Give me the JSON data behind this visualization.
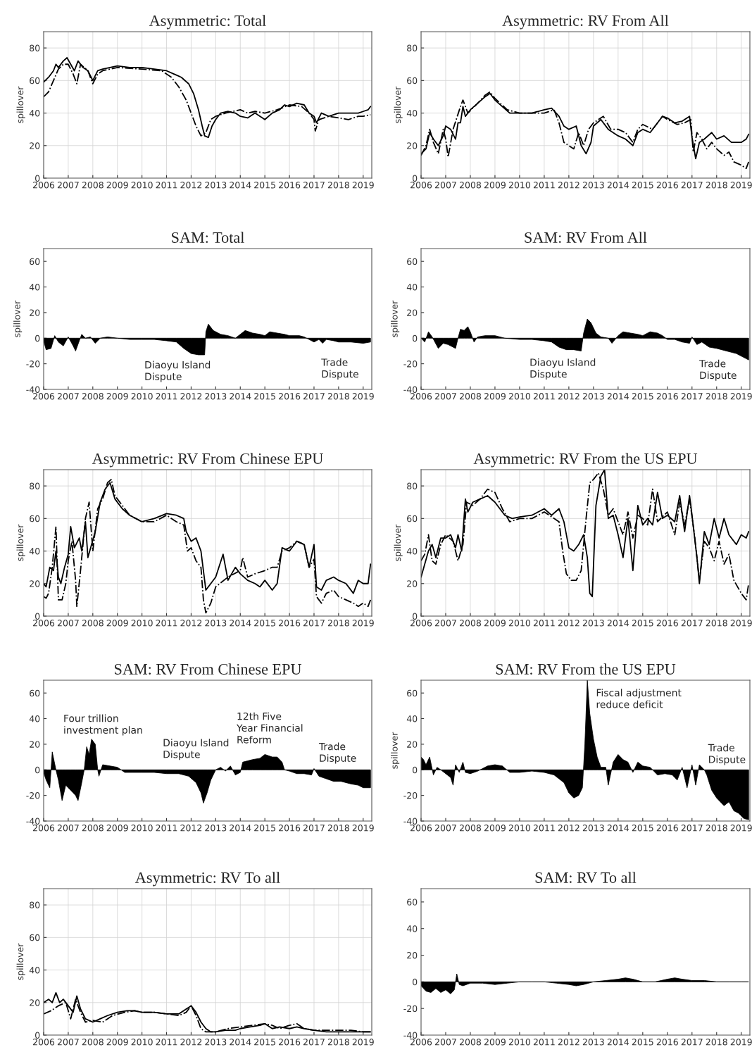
{
  "chart_data": [
    {
      "type": "line",
      "title": "Asymmetric: Total",
      "ylabel": "spillover",
      "xlim": [
        2006,
        2019.35
      ],
      "xticks": [
        2006,
        2007,
        2008,
        2009,
        2010,
        2011,
        2012,
        2013,
        2014,
        2015,
        2016,
        2017,
        2018,
        2019
      ],
      "ylim": [
        0,
        90
      ],
      "yticks": [
        0,
        20,
        40,
        60,
        80
      ],
      "grid": true,
      "series": [
        {
          "color": "#000000",
          "line_style": "solid",
          "x": [
            2006,
            2006.2,
            2006.4,
            2006.5,
            2006.6,
            2006.8,
            2006.95,
            2007.1,
            2007.25,
            2007.4,
            2007.6,
            2007.8,
            2008.0,
            2008.2,
            2008.4,
            2008.7,
            2009,
            2009.5,
            2010,
            2010.5,
            2011,
            2011.3,
            2011.6,
            2011.9,
            2012.1,
            2012.3,
            2012.45,
            2012.55,
            2012.7,
            2012.85,
            2013,
            2013.2,
            2013.5,
            2013.8,
            2014,
            2014.3,
            2014.6,
            2015,
            2015.3,
            2015.6,
            2015.8,
            2016,
            2016.3,
            2016.6,
            2016.8,
            2017,
            2017.1,
            2017.3,
            2017.6,
            2018,
            2018.4,
            2018.8,
            2019,
            2019.2,
            2019.3
          ],
          "values": [
            59,
            62,
            66,
            70,
            68,
            72,
            74,
            70,
            66,
            72,
            68,
            66,
            60,
            66,
            67,
            68,
            69,
            68,
            68,
            67,
            66,
            64,
            62,
            58,
            52,
            42,
            32,
            26,
            25,
            32,
            36,
            40,
            41,
            40,
            38,
            37,
            40,
            36,
            40,
            42,
            45,
            44,
            46,
            45,
            40,
            38,
            34,
            40,
            38,
            40,
            40,
            40,
            41,
            42,
            44
          ]
        },
        {
          "color": "#000000",
          "line_style": "dashdot",
          "x": [
            2006,
            2006.2,
            2006.4,
            2006.6,
            2006.8,
            2007,
            2007.2,
            2007.35,
            2007.5,
            2007.8,
            2008,
            2008.2,
            2008.4,
            2009,
            2010,
            2010.8,
            2011.2,
            2011.5,
            2011.8,
            2012,
            2012.2,
            2012.4,
            2012.6,
            2012.8,
            2013,
            2013.4,
            2014,
            2014.3,
            2014.6,
            2015,
            2015.5,
            2016,
            2016.5,
            2016.8,
            2017,
            2017.05,
            2017.2,
            2017.6,
            2018,
            2018.4,
            2018.8,
            2019,
            2019.3
          ],
          "values": [
            50,
            53,
            60,
            67,
            70,
            70,
            64,
            58,
            70,
            66,
            58,
            64,
            66,
            68,
            67,
            66,
            62,
            56,
            48,
            40,
            32,
            26,
            28,
            36,
            38,
            40,
            42,
            40,
            41,
            40,
            42,
            45,
            44,
            40,
            36,
            29,
            36,
            38,
            37,
            36,
            38,
            38,
            39
          ]
        }
      ]
    },
    {
      "type": "line",
      "title": "Asymmetric: RV From All",
      "ylabel": "spillover",
      "xlim": [
        2006,
        2019.35
      ],
      "xticks": [
        2006,
        2007,
        2008,
        2009,
        2010,
        2011,
        2012,
        2013,
        2014,
        2015,
        2016,
        2017,
        2018,
        2019
      ],
      "ylim": [
        0,
        90
      ],
      "yticks": [
        0,
        20,
        40,
        60,
        80
      ],
      "grid": true,
      "series": [
        {
          "color": "#000000",
          "line_style": "solid",
          "x": [
            2006,
            2006.2,
            2006.35,
            2006.5,
            2006.7,
            2006.9,
            2007,
            2007.2,
            2007.4,
            2007.5,
            2007.6,
            2007.7,
            2007.8,
            2008,
            2008.3,
            2008.6,
            2008.8,
            2009,
            2009.3,
            2009.6,
            2010,
            2010.5,
            2011,
            2011.3,
            2011.6,
            2011.8,
            2012,
            2012.3,
            2012.5,
            2012.7,
            2012.9,
            2013,
            2013.3,
            2013.6,
            2014,
            2014.3,
            2014.6,
            2014.8,
            2015,
            2015.3,
            2015.6,
            2015.8,
            2016,
            2016.3,
            2016.6,
            2016.9,
            2017,
            2017.15,
            2017.3,
            2017.5,
            2017.8,
            2018,
            2018.3,
            2018.6,
            2019,
            2019.2,
            2019.3
          ],
          "values": [
            15,
            18,
            28,
            24,
            20,
            26,
            32,
            30,
            24,
            34,
            34,
            44,
            38,
            42,
            46,
            50,
            52,
            48,
            44,
            40,
            40,
            40,
            42,
            43,
            38,
            32,
            30,
            32,
            20,
            15,
            22,
            32,
            36,
            30,
            26,
            24,
            20,
            28,
            30,
            28,
            34,
            38,
            37,
            34,
            35,
            38,
            25,
            12,
            22,
            24,
            28,
            24,
            26,
            22,
            22,
            24,
            27
          ]
        },
        {
          "color": "#000000",
          "line_style": "dashdot",
          "x": [
            2006,
            2006.2,
            2006.35,
            2006.5,
            2006.7,
            2006.9,
            2007,
            2007.1,
            2007.3,
            2007.6,
            2007.7,
            2007.9,
            2008.3,
            2008.6,
            2008.8,
            2009,
            2009.5,
            2010,
            2010.5,
            2011,
            2011.4,
            2011.6,
            2011.8,
            2012,
            2012.2,
            2012.4,
            2012.6,
            2012.8,
            2013,
            2013.4,
            2013.7,
            2014,
            2014.3,
            2014.6,
            2014.8,
            2015,
            2015.4,
            2015.6,
            2015.8,
            2016,
            2016.4,
            2016.7,
            2016.95,
            2017.05,
            2017.2,
            2017.4,
            2017.6,
            2017.8,
            2018,
            2018.3,
            2018.5,
            2018.7,
            2019,
            2019.2,
            2019.3
          ],
          "values": [
            14,
            20,
            30,
            22,
            15,
            30,
            24,
            13,
            30,
            44,
            48,
            40,
            46,
            51,
            53,
            49,
            42,
            40,
            40,
            40,
            42,
            34,
            22,
            20,
            18,
            28,
            20,
            30,
            34,
            38,
            30,
            30,
            28,
            22,
            30,
            33,
            30,
            34,
            38,
            36,
            33,
            34,
            36,
            16,
            28,
            24,
            18,
            22,
            18,
            14,
            16,
            10,
            8,
            6,
            10
          ]
        }
      ]
    },
    {
      "type": "area",
      "title": "SAM: Total",
      "ylabel": "spillover",
      "xlim": [
        2006,
        2019.35
      ],
      "xticks": [
        2006,
        2007,
        2008,
        2009,
        2010,
        2011,
        2012,
        2013,
        2014,
        2015,
        2016,
        2017,
        2018,
        2019
      ],
      "ylim": [
        -40,
        70
      ],
      "yticks": [
        -40,
        -20,
        0,
        20,
        40,
        60
      ],
      "grid": false,
      "annotations": [
        "Diaoyu Island\nDispute",
        "Trade\nDispute"
      ],
      "series": [
        {
          "color": "#000000",
          "x": [
            2006,
            2006.1,
            2006.3,
            2006.45,
            2006.6,
            2006.8,
            2007,
            2007.2,
            2007.3,
            2007.45,
            2007.55,
            2007.7,
            2007.9,
            2008.1,
            2008.3,
            2008.6,
            2009,
            2009.5,
            2010,
            2010.5,
            2011,
            2011.4,
            2011.7,
            2012,
            2012.3,
            2012.55,
            2012.6,
            2012.7,
            2012.9,
            2013.2,
            2013.5,
            2013.8,
            2014,
            2014.2,
            2014.5,
            2014.8,
            2015,
            2015.2,
            2015.5,
            2015.8,
            2016,
            2016.4,
            2016.6,
            2016.8,
            2017,
            2017.2,
            2017.35,
            2017.5,
            2017.8,
            2018,
            2018.5,
            2019,
            2019.3
          ],
          "values": [
            -2,
            -9,
            -8,
            2,
            -3,
            -6,
            1,
            -6,
            -10,
            -2,
            3,
            0,
            1,
            -4,
            0,
            1,
            0,
            -1,
            -1,
            -1,
            -2,
            -3,
            -8,
            -12,
            -13,
            -13,
            5,
            11,
            6,
            3,
            2,
            0,
            3,
            6,
            4,
            3,
            2,
            5,
            4,
            3,
            2,
            2,
            1,
            -1,
            -3,
            -1,
            -4,
            -1,
            -2,
            -3,
            -3,
            -4,
            -3
          ]
        }
      ]
    },
    {
      "type": "area",
      "title": "SAM: RV From All",
      "ylabel": "spillover",
      "xlim": [
        2006,
        2019.35
      ],
      "xticks": [
        2006,
        2007,
        2008,
        2009,
        2010,
        2011,
        2012,
        2013,
        2014,
        2015,
        2016,
        2017,
        2018,
        2019
      ],
      "ylim": [
        -40,
        70
      ],
      "yticks": [
        -40,
        -20,
        0,
        20,
        40,
        60
      ],
      "grid": false,
      "annotations": [
        "Diaoyu Island\nDispute",
        "Trade\nDispute"
      ],
      "series": [
        {
          "color": "#000000",
          "x": [
            2006,
            2006.15,
            2006.3,
            2006.45,
            2006.7,
            2006.9,
            2007.1,
            2007.4,
            2007.5,
            2007.6,
            2007.75,
            2007.9,
            2008,
            2008.15,
            2008.3,
            2008.6,
            2009,
            2009.4,
            2010,
            2010.5,
            2011,
            2011.3,
            2011.6,
            2011.9,
            2012.2,
            2012.5,
            2012.6,
            2012.75,
            2012.9,
            2013.1,
            2013.3,
            2013.6,
            2013.75,
            2014,
            2014.2,
            2014.5,
            2014.8,
            2015,
            2015.3,
            2015.6,
            2015.8,
            2016,
            2016.3,
            2016.6,
            2016.9,
            2017,
            2017.2,
            2017.4,
            2017.7,
            2018,
            2018.4,
            2018.8,
            2019,
            2019.2,
            2019.3
          ],
          "values": [
            0,
            -3,
            5,
            1,
            -8,
            -4,
            -5,
            -8,
            0,
            7,
            6,
            9,
            5,
            -3,
            1,
            2,
            2,
            0,
            -1,
            -1,
            -2,
            -3,
            -7,
            -9,
            -9,
            -10,
            4,
            15,
            12,
            4,
            1,
            0,
            -4,
            2,
            5,
            4,
            3,
            2,
            5,
            4,
            2,
            -1,
            -1,
            -3,
            -4,
            1,
            -5,
            -3,
            -7,
            -8,
            -10,
            -12,
            -14,
            -16,
            -17
          ]
        }
      ]
    },
    {
      "type": "line",
      "title": "Asymmetric: RV From Chinese EPU",
      "ylabel": "spillover",
      "xlim": [
        2006,
        2019.35
      ],
      "xticks": [
        2006,
        2007,
        2008,
        2009,
        2010,
        2011,
        2012,
        2013,
        2014,
        2015,
        2016,
        2017,
        2018,
        2019
      ],
      "ylim": [
        0,
        90
      ],
      "yticks": [
        0,
        20,
        40,
        60,
        80
      ],
      "grid": true,
      "series": [
        {
          "color": "#000000",
          "line_style": "solid",
          "x": [
            2006,
            2006.1,
            2006.25,
            2006.4,
            2006.5,
            2006.6,
            2006.7,
            2006.85,
            2007,
            2007.1,
            2007.25,
            2007.45,
            2007.55,
            2007.7,
            2007.8,
            2007.95,
            2008.1,
            2008.3,
            2008.5,
            2008.7,
            2008.9,
            2009.2,
            2009.5,
            2010,
            2010.5,
            2011,
            2011.4,
            2011.7,
            2011.8,
            2012,
            2012.2,
            2012.4,
            2012.5,
            2012.6,
            2012.8,
            2013,
            2013.3,
            2013.5,
            2013.8,
            2014,
            2014.3,
            2014.6,
            2014.8,
            2015,
            2015.3,
            2015.5,
            2015.7,
            2016,
            2016.3,
            2016.6,
            2016.8,
            2017,
            2017.1,
            2017.3,
            2017.5,
            2017.8,
            2018,
            2018.3,
            2018.6,
            2018.8,
            2019,
            2019.2,
            2019.3
          ],
          "values": [
            20,
            18,
            30,
            28,
            40,
            24,
            20,
            30,
            38,
            55,
            42,
            48,
            40,
            58,
            36,
            44,
            52,
            70,
            78,
            82,
            72,
            66,
            62,
            58,
            60,
            63,
            62,
            60,
            52,
            46,
            48,
            40,
            28,
            16,
            20,
            24,
            38,
            22,
            30,
            26,
            22,
            20,
            18,
            22,
            16,
            20,
            42,
            40,
            46,
            44,
            30,
            44,
            18,
            16,
            22,
            24,
            22,
            20,
            14,
            22,
            20,
            20,
            32
          ]
        },
        {
          "color": "#000000",
          "line_style": "dashdot",
          "x": [
            2006,
            2006.1,
            2006.2,
            2006.35,
            2006.5,
            2006.6,
            2006.75,
            2006.9,
            2007,
            2007.15,
            2007.3,
            2007.35,
            2007.5,
            2007.7,
            2007.85,
            2008,
            2008.2,
            2008.4,
            2008.6,
            2008.75,
            2008.9,
            2009.2,
            2009.5,
            2010,
            2010.5,
            2011,
            2011.4,
            2011.7,
            2011.85,
            2012,
            2012.2,
            2012.4,
            2012.5,
            2012.6,
            2012.8,
            2013,
            2013.5,
            2014,
            2014.1,
            2014.3,
            2014.6,
            2015,
            2015.3,
            2015.5,
            2015.7,
            2016,
            2016.3,
            2016.6,
            2016.8,
            2017,
            2017.1,
            2017.3,
            2017.5,
            2017.8,
            2018,
            2018.3,
            2018.6,
            2018.8,
            2019,
            2019.2,
            2019.3
          ],
          "values": [
            12,
            11,
            14,
            30,
            55,
            10,
            10,
            20,
            34,
            46,
            22,
            6,
            28,
            60,
            70,
            40,
            66,
            72,
            82,
            84,
            74,
            68,
            62,
            58,
            58,
            62,
            58,
            56,
            40,
            42,
            34,
            30,
            10,
            2,
            8,
            18,
            24,
            28,
            36,
            24,
            26,
            28,
            30,
            30,
            40,
            42,
            46,
            44,
            30,
            35,
            12,
            8,
            14,
            16,
            12,
            10,
            8,
            6,
            8,
            6,
            10
          ]
        }
      ]
    },
    {
      "type": "line",
      "title": "Asymmetric: RV From the US EPU",
      "ylabel": "spillover",
      "xlim": [
        2006,
        2019.35
      ],
      "xticks": [
        2006,
        2007,
        2008,
        2009,
        2010,
        2011,
        2012,
        2013,
        2014,
        2015,
        2016,
        2017,
        2018,
        2019
      ],
      "ylim": [
        0,
        90
      ],
      "yticks": [
        0,
        20,
        40,
        60,
        80
      ],
      "grid": true,
      "series": [
        {
          "color": "#000000",
          "line_style": "solid",
          "x": [
            2006,
            2006.15,
            2006.3,
            2006.45,
            2006.6,
            2006.8,
            2007,
            2007.2,
            2007.4,
            2007.5,
            2007.65,
            2007.8,
            2007.9,
            2008.1,
            2008.4,
            2008.7,
            2009,
            2009.4,
            2009.7,
            2010,
            2010.5,
            2011,
            2011.3,
            2011.6,
            2011.8,
            2012,
            2012.2,
            2012.4,
            2012.6,
            2012.75,
            2012.85,
            2012.95,
            2013.1,
            2013.3,
            2013.45,
            2013.6,
            2013.8,
            2014,
            2014.2,
            2014.4,
            2014.6,
            2014.8,
            2015,
            2015.2,
            2015.4,
            2015.6,
            2015.8,
            2016,
            2016.3,
            2016.5,
            2016.7,
            2016.9,
            2017,
            2017.2,
            2017.3,
            2017.5,
            2017.7,
            2017.9,
            2018.1,
            2018.3,
            2018.5,
            2018.8,
            2019,
            2019.2,
            2019.3
          ],
          "values": [
            24,
            32,
            40,
            44,
            36,
            48,
            48,
            50,
            42,
            50,
            40,
            72,
            64,
            70,
            72,
            74,
            70,
            62,
            60,
            61,
            62,
            66,
            62,
            66,
            58,
            42,
            40,
            44,
            50,
            36,
            14,
            12,
            68,
            86,
            90,
            60,
            62,
            50,
            36,
            60,
            28,
            68,
            56,
            60,
            56,
            76,
            60,
            62,
            58,
            74,
            52,
            74,
            62,
            36,
            20,
            52,
            44,
            60,
            48,
            60,
            50,
            44,
            50,
            48,
            52
          ]
        },
        {
          "color": "#000000",
          "line_style": "dashdot",
          "x": [
            2006,
            2006.15,
            2006.3,
            2006.45,
            2006.6,
            2006.8,
            2007,
            2007.3,
            2007.5,
            2007.7,
            2007.85,
            2008.1,
            2008.4,
            2008.7,
            2009,
            2009.3,
            2009.6,
            2010,
            2010.5,
            2011,
            2011.4,
            2011.6,
            2011.75,
            2011.9,
            2012.1,
            2012.3,
            2012.5,
            2012.7,
            2012.85,
            2013,
            2013.2,
            2013.4,
            2013.6,
            2013.8,
            2014,
            2014.2,
            2014.4,
            2014.6,
            2014.8,
            2015,
            2015.2,
            2015.4,
            2015.6,
            2016,
            2016.3,
            2016.5,
            2016.7,
            2016.9,
            2017.1,
            2017.3,
            2017.5,
            2017.7,
            2017.9,
            2018.1,
            2018.3,
            2018.5,
            2018.7,
            2019,
            2019.2,
            2019.3
          ],
          "values": [
            34,
            38,
            50,
            34,
            32,
            44,
            50,
            46,
            34,
            44,
            70,
            68,
            72,
            78,
            76,
            66,
            58,
            60,
            60,
            64,
            60,
            58,
            40,
            26,
            22,
            22,
            28,
            60,
            82,
            84,
            88,
            78,
            62,
            66,
            58,
            50,
            64,
            48,
            62,
            60,
            56,
            78,
            58,
            64,
            50,
            70,
            56,
            72,
            50,
            22,
            46,
            42,
            34,
            46,
            32,
            38,
            22,
            14,
            10,
            20
          ]
        }
      ]
    },
    {
      "type": "area",
      "title": "SAM: RV From Chinese EPU",
      "xlim": [
        2006,
        2019.35
      ],
      "xticks": [
        2006,
        2007,
        2008,
        2009,
        2010,
        2011,
        2012,
        2013,
        2014,
        2015,
        2016,
        2017,
        2018,
        2019
      ],
      "ylim": [
        -40,
        70
      ],
      "yticks": [
        -40,
        -20,
        0,
        20,
        40,
        60
      ],
      "grid": false,
      "annotations": [
        "Four trillion\ninvestment plan",
        "Diaoyu Island\nDispute",
        "12th Five\nYear Financial\nReform",
        "Trade\nDispute"
      ],
      "series": [
        {
          "color": "#000000",
          "x": [
            2006,
            2006.1,
            2006.25,
            2006.35,
            2006.5,
            2006.6,
            2006.75,
            2006.9,
            2007.1,
            2007.3,
            2007.4,
            2007.55,
            2007.65,
            2007.75,
            2007.85,
            2007.95,
            2008.1,
            2008.2,
            2008.25,
            2008.4,
            2008.7,
            2009,
            2009.3,
            2009.6,
            2010,
            2010.5,
            2011,
            2011.5,
            2011.9,
            2012.2,
            2012.4,
            2012.5,
            2012.65,
            2012.8,
            2013,
            2013.2,
            2013.4,
            2013.6,
            2013.8,
            2014,
            2014.1,
            2014.3,
            2014.5,
            2014.8,
            2015,
            2015.3,
            2015.5,
            2015.7,
            2015.8,
            2016,
            2016.3,
            2016.6,
            2016.9,
            2017,
            2017.2,
            2017.5,
            2017.8,
            2018.1,
            2018.5,
            2018.8,
            2019,
            2019.3
          ],
          "values": [
            -2,
            -8,
            -14,
            14,
            0,
            -8,
            -24,
            -12,
            -16,
            -20,
            -24,
            -10,
            0,
            18,
            12,
            24,
            20,
            0,
            -5,
            4,
            3,
            2,
            -2,
            -2,
            -2,
            -2,
            -3,
            -3,
            -5,
            -10,
            -18,
            -26,
            -18,
            -8,
            0,
            2,
            -1,
            3,
            -4,
            -2,
            6,
            7,
            8,
            9,
            12,
            10,
            10,
            6,
            0,
            -1,
            -3,
            -3,
            -4,
            1,
            -5,
            -7,
            -9,
            -9,
            -11,
            -12,
            -14,
            -14
          ]
        }
      ]
    },
    {
      "type": "area",
      "title": "SAM: RV From the US EPU",
      "ylabel": "spillover",
      "xlim": [
        2006,
        2019.35
      ],
      "xticks": [
        2006,
        2007,
        2008,
        2009,
        2010,
        2011,
        2012,
        2013,
        2014,
        2015,
        2016,
        2017,
        2018,
        2019
      ],
      "ylim": [
        -40,
        70
      ],
      "yticks": [
        -40,
        -20,
        0,
        20,
        40,
        60
      ],
      "grid": false,
      "annotations": [
        "Fiscal adjustment\nreduce deficit",
        "Trade\nDispute"
      ],
      "series": [
        {
          "color": "#000000",
          "x": [
            2006,
            2006.1,
            2006.2,
            2006.35,
            2006.5,
            2006.65,
            2006.8,
            2007,
            2007.2,
            2007.3,
            2007.4,
            2007.55,
            2007.7,
            2007.8,
            2008,
            2008.3,
            2008.7,
            2009,
            2009.3,
            2009.6,
            2010,
            2010.5,
            2011,
            2011.4,
            2011.8,
            2012,
            2012.2,
            2012.4,
            2012.55,
            2012.65,
            2012.75,
            2012.85,
            2013,
            2013.15,
            2013.3,
            2013.5,
            2013.6,
            2013.8,
            2014,
            2014.2,
            2014.4,
            2014.6,
            2014.8,
            2015,
            2015.3,
            2015.6,
            2015.9,
            2016.2,
            2016.4,
            2016.6,
            2016.8,
            2017,
            2017.15,
            2017.3,
            2017.5,
            2017.6,
            2017.8,
            2018,
            2018.3,
            2018.5,
            2018.7,
            2018.9,
            2019.1,
            2019.3
          ],
          "values": [
            10,
            8,
            4,
            10,
            -4,
            2,
            0,
            -3,
            -6,
            -12,
            4,
            -2,
            6,
            -2,
            -3,
            -1,
            3,
            4,
            3,
            -2,
            -2,
            -1,
            -2,
            -4,
            -10,
            -18,
            -22,
            -20,
            -14,
            20,
            70,
            44,
            24,
            10,
            2,
            2,
            -12,
            6,
            12,
            8,
            6,
            -2,
            6,
            3,
            2,
            -4,
            -3,
            -4,
            -8,
            2,
            -14,
            4,
            -12,
            4,
            0,
            -4,
            -16,
            -22,
            -28,
            -25,
            -32,
            -34,
            -38,
            -39
          ]
        }
      ]
    },
    {
      "type": "line",
      "title": "Asymmetric: RV To all",
      "ylabel": "spillover",
      "xlim": [
        2006,
        2019.35
      ],
      "xticks": [
        2006,
        2007,
        2008,
        2009,
        2010,
        2011,
        2012,
        2013,
        2014,
        2015,
        2016,
        2017,
        2018,
        2019
      ],
      "ylim": [
        0,
        90
      ],
      "yticks": [
        0,
        20,
        40,
        60,
        80
      ],
      "grid": true,
      "series": [
        {
          "color": "#000000",
          "line_style": "solid",
          "x": [
            2006,
            2006.2,
            2006.35,
            2006.5,
            2006.65,
            2006.8,
            2007,
            2007.2,
            2007.35,
            2007.5,
            2007.7,
            2008,
            2008.3,
            2008.6,
            2009,
            2009.4,
            2009.7,
            2010,
            2010.5,
            2011,
            2011.5,
            2011.8,
            2012,
            2012.2,
            2012.4,
            2012.6,
            2012.8,
            2013,
            2013.4,
            2013.8,
            2014,
            2014.4,
            2014.8,
            2015,
            2015.3,
            2015.6,
            2016,
            2016.3,
            2016.6,
            2017,
            2017.5,
            2018,
            2018.5,
            2019,
            2019.3
          ],
          "values": [
            20,
            22,
            20,
            26,
            20,
            22,
            18,
            14,
            24,
            16,
            10,
            8,
            10,
            12,
            14,
            15,
            15,
            14,
            14,
            13,
            13,
            16,
            18,
            14,
            8,
            4,
            2,
            2,
            3,
            3,
            4,
            5,
            6,
            7,
            4,
            5,
            4,
            5,
            4,
            3,
            2,
            2,
            2,
            2,
            2
          ]
        },
        {
          "color": "#000000",
          "line_style": "dashdot",
          "x": [
            2006,
            2006.3,
            2006.6,
            2006.9,
            2007.1,
            2007.3,
            2007.5,
            2007.7,
            2008,
            2008.4,
            2008.8,
            2009.3,
            2009.7,
            2010,
            2010.5,
            2011,
            2011.5,
            2011.8,
            2012,
            2012.2,
            2012.4,
            2012.6,
            2013,
            2013.5,
            2014,
            2014.5,
            2015,
            2015.3,
            2015.6,
            2016,
            2016.3,
            2016.6,
            2017,
            2017.5,
            2018,
            2018.5,
            2019,
            2019.3
          ],
          "values": [
            13,
            15,
            18,
            20,
            10,
            22,
            14,
            8,
            9,
            8,
            12,
            14,
            15,
            14,
            14,
            13,
            12,
            14,
            18,
            12,
            4,
            2,
            2,
            4,
            5,
            6,
            7,
            6,
            4,
            6,
            7,
            4,
            3,
            3,
            3,
            3,
            2,
            2
          ]
        }
      ]
    },
    {
      "type": "area",
      "title": "SAM: RV To all",
      "xlim": [
        2006,
        2019.35
      ],
      "xticks": [
        2006,
        2007,
        2008,
        2009,
        2010,
        2011,
        2012,
        2013,
        2014,
        2015,
        2016,
        2017,
        2018,
        2019
      ],
      "ylim": [
        -40,
        70
      ],
      "yticks": [
        -40,
        -20,
        0,
        20,
        40,
        60
      ],
      "grid": false,
      "series": [
        {
          "color": "#000000",
          "x": [
            2006,
            2006.2,
            2006.4,
            2006.6,
            2006.8,
            2007,
            2007.2,
            2007.35,
            2007.45,
            2007.55,
            2007.7,
            2008,
            2008.5,
            2009,
            2009.5,
            2010,
            2010.5,
            2011,
            2011.5,
            2012,
            2012.3,
            2012.6,
            2013,
            2013.5,
            2014,
            2014.3,
            2014.6,
            2015,
            2015.5,
            2016,
            2016.3,
            2016.6,
            2017,
            2017.5,
            2018,
            2018.5,
            2019,
            2019.3
          ],
          "values": [
            -3,
            -7,
            -8,
            -5,
            -8,
            -6,
            -9,
            -6,
            6,
            -2,
            -3,
            -1,
            -1,
            -2,
            -1,
            0,
            0,
            0,
            -1,
            -2,
            -3,
            -2,
            0,
            1,
            2,
            3,
            2,
            0,
            0,
            2,
            3,
            2,
            1,
            1,
            0,
            0,
            0,
            0
          ]
        }
      ]
    }
  ]
}
